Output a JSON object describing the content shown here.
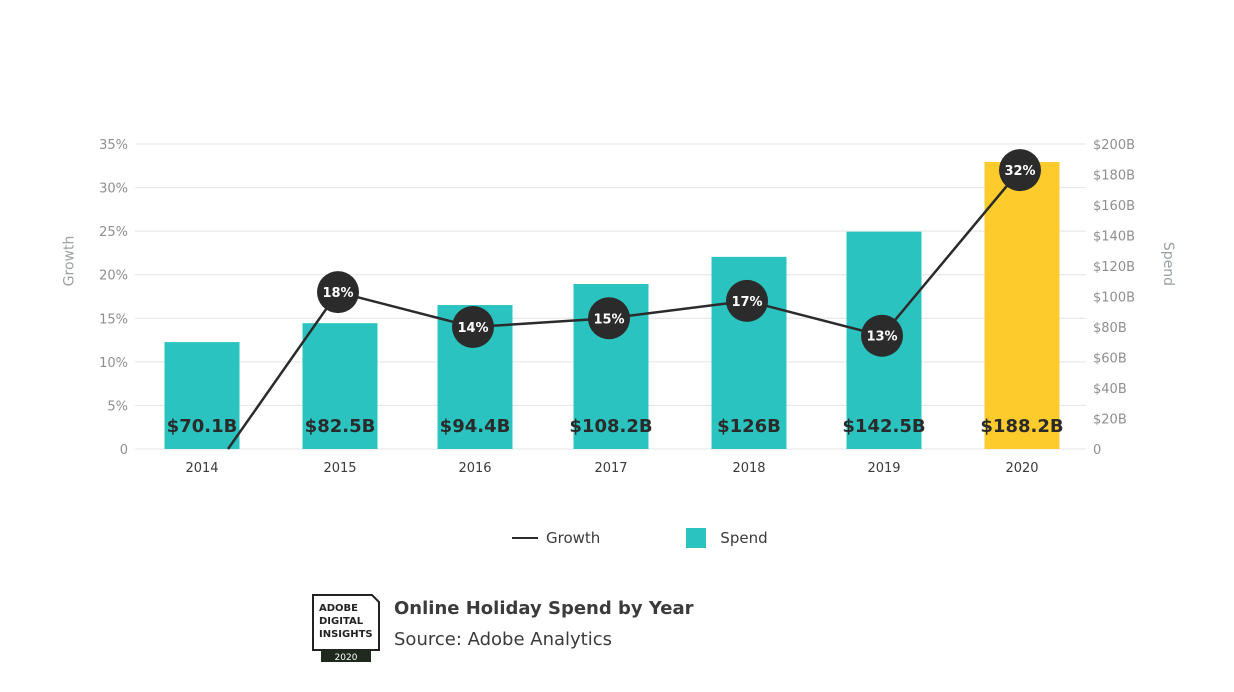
{
  "chart_data": {
    "type": "bar+line",
    "categories": [
      "2014",
      "2015",
      "2016",
      "2017",
      "2018",
      "2019",
      "2020"
    ],
    "spend": {
      "name": "Spend",
      "values": [
        70.1,
        82.5,
        94.4,
        108.2,
        126,
        142.5,
        188.2
      ],
      "labels": [
        "$70.1B",
        "$82.5B",
        "$94.4B",
        "$108.2B",
        "$126B",
        "$142.5B",
        "$188.2B"
      ],
      "color": "#2bc3bf",
      "highlight_color": "#fdcc2c",
      "highlight_index": 6
    },
    "growth": {
      "name": "Growth",
      "values": [
        null,
        18,
        14,
        15,
        17,
        13,
        32
      ],
      "labels": [
        "",
        "18%",
        "14%",
        "15%",
        "17%",
        "13%",
        "32%"
      ],
      "color": "#2b2b2b"
    },
    "left_axis": {
      "title": "Growth",
      "ticks": [
        "0",
        "5%",
        "10%",
        "15%",
        "20%",
        "25%",
        "30%",
        "35%"
      ],
      "range": [
        0,
        35
      ]
    },
    "right_axis": {
      "title": "Spend",
      "ticks": [
        "0",
        "$20B",
        "$40B",
        "$60B",
        "$80B",
        "$100B",
        "$120B",
        "$140B",
        "$160B",
        "$180B",
        "$200B"
      ],
      "range": [
        0,
        200
      ]
    },
    "grid": true,
    "legend_position": "bottom-center"
  },
  "legend": {
    "growth": "Growth",
    "spend": "Spend"
  },
  "footer": {
    "badge_lines": [
      "ADOBE",
      "DIGITAL",
      "INSIGHTS"
    ],
    "badge_year": "2020",
    "title": "Online Holiday Spend by Year",
    "source": "Source: Adobe Analytics"
  }
}
